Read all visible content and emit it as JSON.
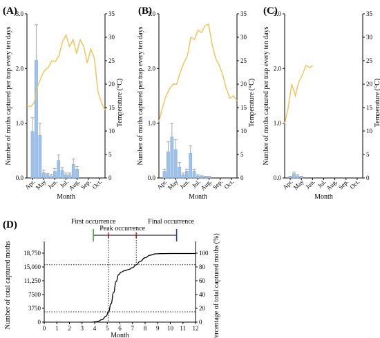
{
  "colors": {
    "bar": "#9ec1e8",
    "bar_edge": "#6f9fd8",
    "error": "#a8a8a8",
    "temperature": "#f2c14e",
    "first": "#4aa83a",
    "peak": "#e0292f",
    "final": "#2b3f8f",
    "axis": "#000000"
  },
  "chart_data": [
    {
      "panel": "(A)",
      "type": "bar",
      "xlabel": "Month",
      "ylabel": "Number of moths captured per trap every ten days",
      "y2label": "Temperature (°C)",
      "ylim": [
        0,
        3.0
      ],
      "y_ticks": [
        "0.0",
        "1.0",
        "2.0",
        "3.0"
      ],
      "y2lim": [
        0,
        35
      ],
      "y2_ticks": [
        "0",
        "5",
        "10",
        "15",
        "20",
        "25",
        "30",
        "35"
      ],
      "month_labels": [
        "Apr.",
        "May",
        "Jun.",
        "Jul.",
        "Aug.",
        "Sep.",
        "Oct."
      ],
      "n_periods": 21,
      "bar_values": [
        0,
        0.85,
        2.15,
        0.78,
        0.1,
        0.06,
        0.04,
        0.12,
        0.32,
        0.14,
        0.06,
        0.06,
        0.25,
        0.16,
        0,
        0,
        0,
        0,
        0,
        0,
        0
      ],
      "bar_errors": [
        0,
        0.25,
        0.65,
        0.22,
        0.04,
        0.02,
        0.03,
        0.05,
        0.1,
        0.05,
        0.03,
        0.03,
        0.1,
        0.05,
        0,
        0,
        0,
        0,
        0,
        0,
        0
      ],
      "temperature": [
        15.5,
        15.2,
        16.0,
        19.5,
        21.5,
        23.0,
        23.5,
        25.0,
        24.8,
        26.0,
        29.0,
        30.5,
        28.0,
        29.5,
        26.5,
        29.5,
        28.0,
        24.5,
        27.5,
        25.5,
        18.5,
        16.0,
        14.5
      ]
    },
    {
      "panel": "(B)",
      "type": "bar",
      "xlabel": "Month",
      "ylabel": "Number of moths captured per trap every ten days",
      "y2label": "Temperature (°C)",
      "ylim": [
        0,
        3.0
      ],
      "y_ticks": [
        "0.0",
        "1.0",
        "2.0",
        "3.0"
      ],
      "y2lim": [
        0,
        35
      ],
      "y2_ticks": [
        "0",
        "5",
        "10",
        "15",
        "20",
        "25",
        "30",
        "35"
      ],
      "month_labels": [
        "Apr.",
        "May",
        "Jun.",
        "Jul.",
        "Aug.",
        "Sep.",
        "Oct."
      ],
      "n_periods": 21,
      "bar_values": [
        0,
        0.12,
        0.48,
        0.75,
        0.52,
        0.2,
        0.06,
        0.12,
        0.45,
        0.12,
        0.04,
        0.03,
        0.02,
        0.02,
        0,
        0,
        0,
        0,
        0,
        0,
        0
      ],
      "bar_errors": [
        0,
        0.04,
        0.18,
        0.25,
        0.18,
        0.08,
        0.03,
        0.04,
        0.14,
        0.04,
        0.02,
        0.01,
        0.01,
        0.01,
        0,
        0,
        0,
        0,
        0,
        0,
        0
      ],
      "temperature": [
        12.0,
        15.0,
        17.5,
        19.0,
        20.0,
        20.0,
        22.5,
        24.5,
        26.0,
        30.0,
        29.5,
        31.5,
        31.0,
        32.5,
        32.8,
        28.5,
        25.5,
        24.0,
        22.0,
        19.0,
        17.0,
        17.5,
        16.5
      ]
    },
    {
      "panel": "(C)",
      "type": "bar",
      "xlabel": "Month",
      "ylabel": "Number of moths captured per trap every ten days",
      "y2label": "Temperature (°C)",
      "ylim": [
        0,
        3.0
      ],
      "y_ticks": [
        "0.0",
        "1.0",
        "2.0",
        "3.0"
      ],
      "y2lim": [
        0,
        35
      ],
      "y2_ticks": [
        "0",
        "5",
        "10",
        "15",
        "20",
        "25",
        "30",
        "35"
      ],
      "month_labels": [
        "Apr.",
        "May",
        "Jun.",
        "Jul.",
        "Aug.",
        "Sep.",
        "Oct."
      ],
      "n_periods": 21,
      "bar_values": [
        0,
        0.02,
        0.08,
        0.04,
        0.02,
        0,
        0,
        0,
        0,
        0,
        0,
        0,
        0,
        0,
        0,
        0,
        0,
        0,
        0,
        0,
        0
      ],
      "bar_errors": [
        0,
        0.01,
        0.03,
        0.02,
        0.01,
        0,
        0,
        0,
        0,
        0,
        0,
        0,
        0,
        0,
        0,
        0,
        0,
        0,
        0,
        0,
        0
      ],
      "temperature": [
        11.5,
        15.0,
        20.0,
        17.5,
        20.5,
        22.0,
        24.0,
        23.5,
        24.0
      ]
    },
    {
      "panel": "(D)",
      "type": "line",
      "xlabel": "Month",
      "ylabel": "Number of total captured moths",
      "y2label": "Percentage of total captured moths (%)",
      "xlim": [
        0,
        12
      ],
      "x_ticks": [
        "0",
        "1",
        "2",
        "3",
        "4",
        "5",
        "6",
        "7",
        "8",
        "9",
        "10",
        "11",
        "12"
      ],
      "ylim": [
        0,
        18750
      ],
      "y_ticks": [
        "0",
        "3750",
        "7500",
        "11,250",
        "15,000",
        "18,750"
      ],
      "y2lim": [
        0,
        100
      ],
      "y2_ticks": [
        "0",
        "20",
        "40",
        "60",
        "80",
        "100"
      ],
      "curve_x": [
        3.8,
        4.2,
        4.6,
        4.9,
        5.1,
        5.3,
        5.5,
        5.7,
        5.9,
        6.1,
        6.4,
        6.7,
        7.0,
        7.3,
        7.6,
        8.0,
        8.4,
        8.8,
        9.2,
        10.0,
        11.0,
        12.0
      ],
      "curve_y": [
        0,
        150,
        700,
        1600,
        2800,
        5000,
        8000,
        11000,
        12900,
        13600,
        14000,
        14300,
        14800,
        15600,
        16500,
        17500,
        18200,
        18550,
        18620,
        18650,
        18650,
        18650
      ],
      "reference_levels": [
        2800,
        15600
      ],
      "phenology": {
        "first_label": "First occurrence",
        "peak_label": "Peak occurrence",
        "final_label": "Final occurrence",
        "first_x": 3.9,
        "peak_start_x": 5.1,
        "peak_end_x": 7.3,
        "final_x": 10.5
      }
    }
  ]
}
